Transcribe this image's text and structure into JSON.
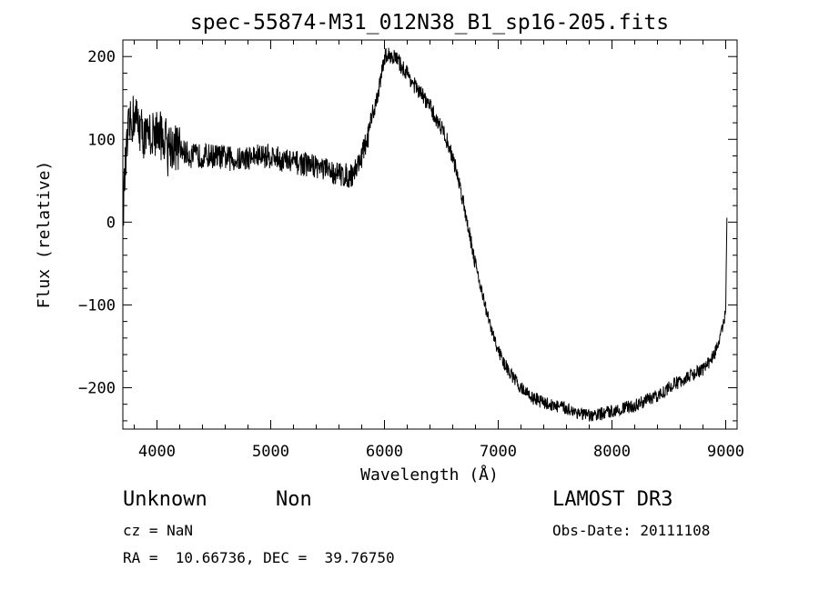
{
  "chart_data": {
    "type": "line",
    "title": "spec-55874-M31_012N38_B1_sp16-205.fits",
    "xlabel": "Wavelength (Å)",
    "ylabel": "Flux (relative)",
    "xlim": [
      3700,
      9100
    ],
    "ylim": [
      -250,
      220
    ],
    "xticks": [
      4000,
      5000,
      6000,
      7000,
      8000,
      9000
    ],
    "xtick_labels": [
      "4000",
      "5000",
      "6000",
      "7000",
      "8000",
      "9000"
    ],
    "yticks": [
      -200,
      -100,
      0,
      100,
      200
    ],
    "ytick_labels": [
      "−200",
      "−100",
      "0",
      "100",
      "200"
    ],
    "grid": false,
    "series": [
      {
        "name": "spectrum",
        "x": [
          3700,
          3720,
          3750,
          3800,
          3850,
          3900,
          3950,
          4000,
          4100,
          4200,
          4300,
          4400,
          4500,
          4600,
          4700,
          4800,
          4900,
          5000,
          5100,
          5200,
          5300,
          5400,
          5500,
          5600,
          5700,
          5750,
          5800,
          5850,
          5900,
          5950,
          6000,
          6050,
          6100,
          6150,
          6200,
          6250,
          6300,
          6350,
          6400,
          6450,
          6500,
          6550,
          6600,
          6650,
          6700,
          6750,
          6800,
          6850,
          6900,
          6950,
          7000,
          7050,
          7100,
          7200,
          7300,
          7400,
          7500,
          7600,
          7700,
          7800,
          7900,
          8000,
          8100,
          8200,
          8300,
          8400,
          8500,
          8600,
          8700,
          8800,
          8900,
          8950,
          9000,
          9010
        ],
        "y": [
          10,
          60,
          110,
          130,
          115,
          100,
          105,
          110,
          95,
          88,
          80,
          80,
          80,
          78,
          75,
          78,
          80,
          80,
          75,
          72,
          70,
          68,
          62,
          58,
          55,
          65,
          80,
          100,
          130,
          160,
          200,
          202,
          198,
          188,
          180,
          168,
          158,
          150,
          140,
          125,
          115,
          98,
          78,
          52,
          20,
          -15,
          -50,
          -80,
          -110,
          -135,
          -155,
          -170,
          -182,
          -200,
          -212,
          -218,
          -222,
          -225,
          -230,
          -235,
          -232,
          -228,
          -225,
          -222,
          -215,
          -210,
          -200,
          -192,
          -185,
          -178,
          -160,
          -140,
          -110,
          0
        ]
      }
    ]
  },
  "info": {
    "class_label": "Unknown",
    "subclass_label": "Non",
    "survey": "LAMOST DR3",
    "cz": "cz = NaN",
    "obs_date": "Obs-Date: 20111108",
    "coords": "RA =  10.66736, DEC =  39.76750"
  }
}
